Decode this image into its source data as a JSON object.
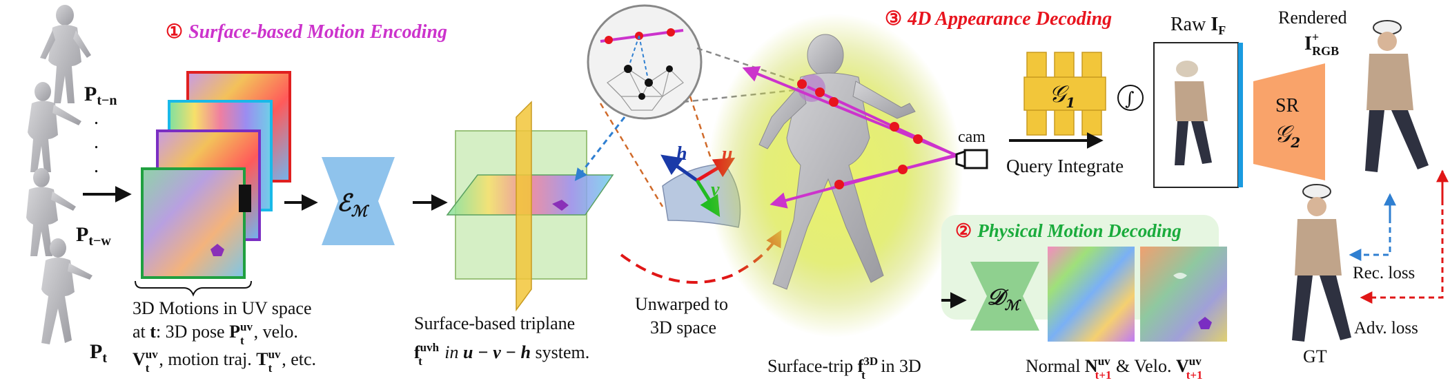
{
  "stage1": {
    "num": "①",
    "title": "Surface-based Motion Encoding"
  },
  "stage2": {
    "num": "②",
    "title": "Physical Motion Decoding"
  },
  "stage3": {
    "num": "③",
    "title": "4D Appearance Decoding"
  },
  "poses": {
    "p_tn": "P",
    "p_tn_sub": "t−n",
    "p_tw": "P",
    "p_tw_sub": "t−w",
    "p_t": "P",
    "p_t_sub": "t",
    "dot": "."
  },
  "uv_caption": {
    "line1": "3D Motions in UV space",
    "line2_a": "at ",
    "line2_t": "t",
    "line2_b": ": 3D pose ",
    "line2_sym": "P",
    "line2_sub": "t",
    "line2_sup": "uv",
    "line2_c": ", velo.",
    "line3_sym": "V",
    "line3_sub": "t",
    "line3_sup": "uv",
    "line3_a": ", motion traj. ",
    "line3_sym2": "T",
    "line3_sub2": "t",
    "line3_sup2": "uv",
    "line3_b": ", etc."
  },
  "encoder": {
    "sym": "ℰ",
    "sub": "ℳ"
  },
  "triplane_caption": {
    "line1": "Surface-based triplane",
    "line2_sym": "f",
    "line2_sub": "t",
    "line2_sup": "uvh",
    "line2_in": " in ",
    "line2_sys": "u − v − h",
    "line2_end": " system."
  },
  "unwarp": {
    "line1": "Unwarped  to",
    "line2": "3D space"
  },
  "axes": {
    "h": "h",
    "u": "u",
    "v": "v"
  },
  "surface_trip": {
    "a": "Surface-trip ",
    "sym": "f",
    "sub": "t",
    "sup": "3D",
    "b": " in 3D"
  },
  "cam": "cam",
  "generator1": {
    "sym": "𝒢",
    "sub": "1"
  },
  "integral": "∫",
  "query": "Query Integrate",
  "raw": {
    "a": "Raw ",
    "sym": "I",
    "sub": "F"
  },
  "sr": {
    "line1": "SR",
    "sym": "𝒢",
    "sub": "2"
  },
  "rendered": {
    "line1": "Rendered",
    "sym": "I",
    "sub": "RGB",
    "sup": "+"
  },
  "decoder": {
    "sym": "𝒟",
    "sub": "ℳ"
  },
  "normal_caption": {
    "a": "Normal ",
    "sym": "N",
    "sub": "t+1",
    "sup": "uv",
    "b": " & Velo. ",
    "sym2": "V",
    "sub2": "t+1",
    "sup2": "uv"
  },
  "gt": "GT",
  "rec_loss": "Rec. loss",
  "adv_loss": "Adv. loss",
  "colors": {
    "magenta": "#cc33cc",
    "stage_red": "#e8141e",
    "stage2_green": "#1aab3c",
    "encoder_blue": "#8fc3ec",
    "decoder_green": "#8fd08f",
    "generator_yellow": "#f2c63a",
    "sr_orange": "#f9a36a",
    "glow": "#d8e64a",
    "blue_dash": "#2f7fd1",
    "red_dash": "#e01616",
    "panel_green": "#e6f6e1"
  }
}
